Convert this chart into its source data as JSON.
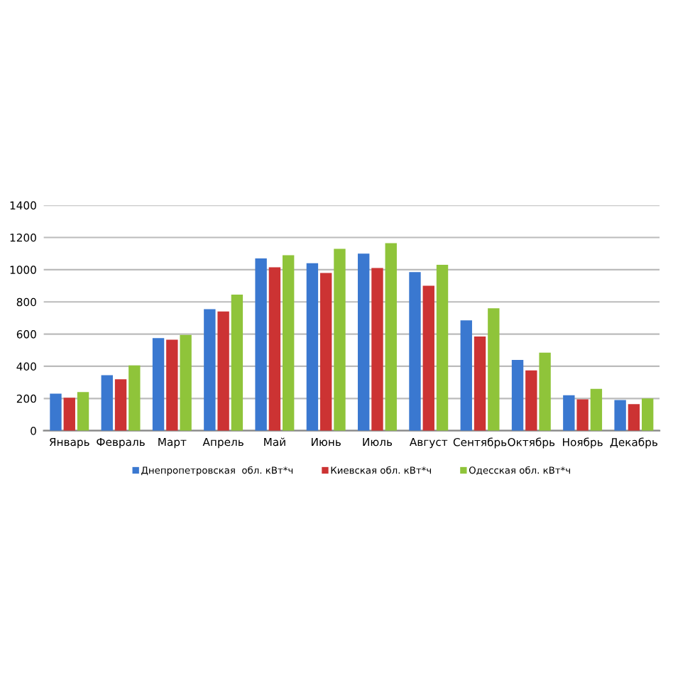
{
  "chart_data": {
    "type": "bar",
    "categories": [
      "Январь",
      "Февраль",
      "Март",
      "Апрель",
      "Май",
      "Июнь",
      "Июль",
      "Август",
      "Сентябрь",
      "Октябрь",
      "Ноябрь",
      "Декабрь"
    ],
    "series": [
      {
        "name": "Днепропетровская  обл. кВт*ч",
        "color": "#3a78d0",
        "values": [
          230,
          345,
          575,
          755,
          1070,
          1040,
          1100,
          985,
          685,
          440,
          220,
          190
        ]
      },
      {
        "name": "Киевская обл. кВт*ч",
        "color": "#cc3333",
        "values": [
          205,
          320,
          565,
          740,
          1015,
          980,
          1010,
          900,
          585,
          375,
          195,
          165
        ]
      },
      {
        "name": "Одесская обл. кВт*ч",
        "color": "#8fc43a",
        "values": [
          240,
          405,
          595,
          845,
          1090,
          1130,
          1165,
          1030,
          760,
          485,
          260,
          200
        ]
      }
    ],
    "ylim": [
      0,
      1400
    ],
    "yticks": [
      0,
      200,
      400,
      600,
      800,
      1000,
      1200,
      1400
    ],
    "grid": "y",
    "legend": "bottom"
  }
}
